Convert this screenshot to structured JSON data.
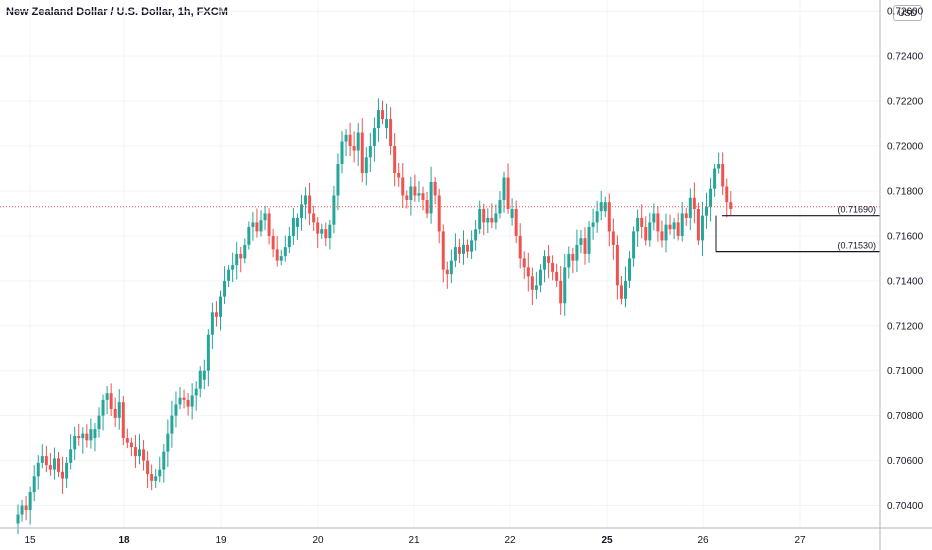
{
  "header": {
    "title": "New Zealand Dollar / U.S. Dollar, 1h, FXCM",
    "currency": "USD"
  },
  "colors": {
    "up": "#26a69a",
    "down": "#ef5350",
    "grid": "#f0f3fa",
    "axis": "#b2b5be",
    "last_price_line": "#ef5350",
    "level_line": "#131722"
  },
  "chart_data": {
    "type": "candlestick",
    "title": "New Zealand Dollar / U.S. Dollar, 1h, FXCM",
    "ylim": [
      0.703,
      0.7265
    ],
    "y_ticks": [
      "0.72600",
      "0.72400",
      "0.72200",
      "0.72000",
      "0.71800",
      "0.71600",
      "0.71400",
      "0.71200",
      "0.71000",
      "0.70800",
      "0.70600",
      "0.70400"
    ],
    "x_ticks": [
      {
        "label": "15",
        "bold": false
      },
      {
        "label": "18",
        "bold": true
      },
      {
        "label": "19",
        "bold": false
      },
      {
        "label": "20",
        "bold": false
      },
      {
        "label": "21",
        "bold": false
      },
      {
        "label": "22",
        "bold": false
      },
      {
        "label": "25",
        "bold": true
      },
      {
        "label": "26",
        "bold": false
      },
      {
        "label": "27",
        "bold": false
      }
    ],
    "grid": true,
    "last_price": 0.7173,
    "levels": [
      {
        "label": "(0.71690)",
        "value": 0.7169
      },
      {
        "label": "(0.71530)",
        "value": 0.7153
      }
    ],
    "candle_groups": [
      {
        "start": 0,
        "closes": [
          0.7036,
          0.704,
          0.7038,
          0.7046,
          0.7053,
          0.7059,
          0.7062,
          0.7058,
          0.7056,
          0.7061,
          0.7055,
          0.7052,
          0.7059,
          0.7065,
          0.7071,
          0.707,
          0.7072,
          0.7069,
          0.7074
        ]
      },
      {
        "start": 19,
        "closes": [
          0.7074,
          0.708,
          0.7087,
          0.709,
          0.7083,
          0.7079,
          0.7086,
          0.707,
          0.7068,
          0.7066,
          0.7062,
          0.7065,
          0.706,
          0.7054,
          0.7051,
          0.7053,
          0.7056,
          0.7064,
          0.7072,
          0.708,
          0.7085,
          0.7088,
          0.7087,
          0.7084,
          0.7089,
          0.7092,
          0.71
        ]
      },
      {
        "start": 46,
        "closes": [
          0.71,
          0.7116,
          0.7126,
          0.7124,
          0.7133,
          0.714,
          0.7145,
          0.7147,
          0.7152,
          0.715,
          0.7156,
          0.7164,
          0.7166,
          0.7162,
          0.7167,
          0.717,
          0.716,
          0.7154,
          0.7149,
          0.7151,
          0.7155,
          0.716,
          0.7168
        ]
      },
      {
        "start": 69,
        "closes": [
          0.7168,
          0.7174,
          0.7178,
          0.717,
          0.7166,
          0.7161,
          0.7163,
          0.7159,
          0.7165,
          0.7178,
          0.7192,
          0.7202,
          0.7205,
          0.72,
          0.7198,
          0.7206,
          0.7188,
          0.7195,
          0.72,
          0.7208,
          0.7216,
          0.7212
        ]
      },
      {
        "start": 91,
        "closes": [
          0.7212,
          0.72,
          0.7188,
          0.7186,
          0.7178,
          0.7176,
          0.7182,
          0.7178,
          0.7179,
          0.7176,
          0.717,
          0.7184,
          0.7178,
          0.7162,
          0.7145,
          0.7143,
          0.7149,
          0.7155,
          0.7152,
          0.7156,
          0.7153,
          0.7158,
          0.7163,
          0.7172,
          0.7166,
          0.7168,
          0.7166,
          0.717,
          0.7176,
          0.7186,
          0.7172
        ]
      },
      {
        "start": 122,
        "closes": [
          0.7172,
          0.716,
          0.715,
          0.7146,
          0.7142,
          0.7136,
          0.7138,
          0.7145,
          0.7151,
          0.7148,
          0.7144,
          0.714,
          0.713,
          0.7146,
          0.7152,
          0.7149,
          0.7156,
          0.7159,
          0.7152,
          0.7164,
          0.7166,
          0.7171,
          0.7175
        ]
      },
      {
        "start": 145,
        "closes": [
          0.7175,
          0.7162,
          0.7156,
          0.7138,
          0.7132,
          0.714,
          0.715,
          0.7162,
          0.7168,
          0.7164,
          0.7158,
          0.7166,
          0.717,
          0.7162,
          0.7158,
          0.7165,
          0.7163,
          0.7166,
          0.716,
          0.717,
          0.7168,
          0.7177,
          0.7172,
          0.7158,
          0.7169,
          0.7173,
          0.7181,
          0.719,
          0.7192,
          0.7182,
          0.7175,
          0.7172
        ]
      }
    ]
  }
}
